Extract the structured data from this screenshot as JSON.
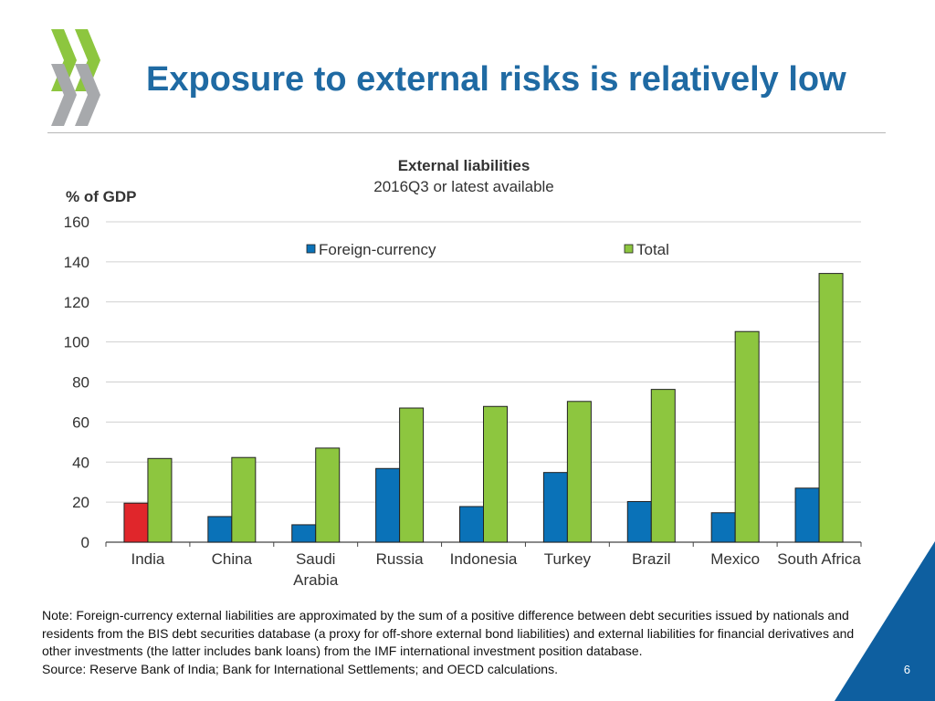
{
  "slide": {
    "title": "Exposure to external risks is relatively low",
    "page_number": "6",
    "note": "Note: Foreign-currency external liabilities are approximated by the sum of a positive difference between debt securities issued by nationals and residents from the BIS debt securities database (a proxy for off-shore external bond liabilities) and external liabilities for financial derivatives and other investments (the latter includes bank loans) from the IMF international investment position database.",
    "source": "Source: Reserve Bank of India; Bank for International Settlements; and OECD calculations.",
    "logo_icon": "oecd-chevrons-logo-icon"
  },
  "colors": {
    "title": "#1f6aa3",
    "foreign_currency": "#0a72b8",
    "total": "#8dc63f",
    "india_highlight": "#e0262b",
    "logo_green": "#8dc63f",
    "logo_gray": "#a7a9ac",
    "corner_blue": "#0e5fa0",
    "gridline": "#d0d0d0"
  },
  "chart_data": {
    "type": "bar",
    "title": "External liabilities",
    "subtitle": "2016Q3 or latest available",
    "ylabel": "% of GDP",
    "ylim": [
      0,
      160
    ],
    "yticks": [
      0,
      20,
      40,
      60,
      80,
      100,
      120,
      140,
      160
    ],
    "grid": true,
    "legend_position": "top",
    "categories": [
      "India",
      "China",
      "Saudi\nArabia",
      "Russia",
      "Indonesia",
      "Turkey",
      "Brazil",
      "Mexico",
      "South Africa"
    ],
    "highlight_category": "India",
    "series": [
      {
        "name": "Foreign-currency",
        "values": [
          19.5,
          12.8,
          8.7,
          36.8,
          17.8,
          34.8,
          20.3,
          14.7,
          27.0
        ]
      },
      {
        "name": "Total",
        "values": [
          41.8,
          42.3,
          47.0,
          67.0,
          67.8,
          70.3,
          76.3,
          105.2,
          134.2
        ]
      }
    ]
  }
}
